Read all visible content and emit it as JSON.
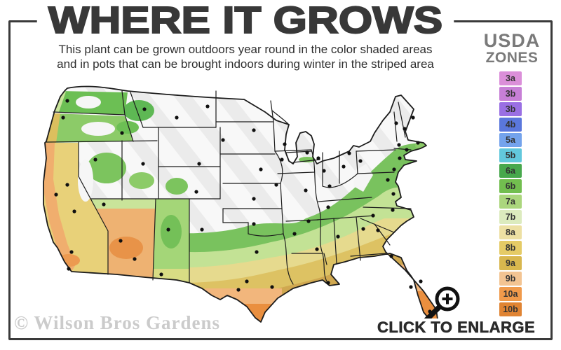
{
  "title": "WHERE IT GROWS",
  "subtitle": {
    "line1": "This plant can be grown outdoors year round in the color shaded areas",
    "line2": "and in pots that can be brought indoors during winter in the striped area"
  },
  "legend": {
    "heading_line1": "USDA",
    "heading_line2": "ZONES",
    "zones": [
      {
        "label": "3a",
        "color": "#DB8FD9"
      },
      {
        "label": "3b",
        "color": "#C77FD6"
      },
      {
        "label": "3b",
        "color": "#9A6FE3"
      },
      {
        "label": "4b",
        "color": "#5A77DC"
      },
      {
        "label": "5a",
        "color": "#74A3EC"
      },
      {
        "label": "5b",
        "color": "#62C8DC"
      },
      {
        "label": "6a",
        "color": "#47A84C"
      },
      {
        "label": "6b",
        "color": "#72BE4F"
      },
      {
        "label": "7a",
        "color": "#ABD67D"
      },
      {
        "label": "7b",
        "color": "#DCEBBE"
      },
      {
        "label": "8a",
        "color": "#EDE0A3"
      },
      {
        "label": "8b",
        "color": "#E5CB66"
      },
      {
        "label": "9a",
        "color": "#D8B74E"
      },
      {
        "label": "9b",
        "color": "#F3C492"
      },
      {
        "label": "10a",
        "color": "#F09A4B"
      },
      {
        "label": "10b",
        "color": "#E08433"
      }
    ]
  },
  "map": {
    "description": "USDA plant hardiness zone shaded map of the continental United States; striped white area in the north, color shaded zones toward the south and coasts",
    "stripe_color": "#EBEBEB",
    "border_color": "#1C1C1C",
    "band_colors": [
      "#79C25E",
      "#C3E295",
      "#E6DA8E",
      "#DDC263",
      "#D0A850",
      "#F2B67C",
      "#EA8F3F"
    ]
  },
  "watermark": "© Wilson Bros Gardens",
  "enlarge": {
    "label": "CLICK TO ENLARGE"
  },
  "frame_color": "#3A3A3A"
}
